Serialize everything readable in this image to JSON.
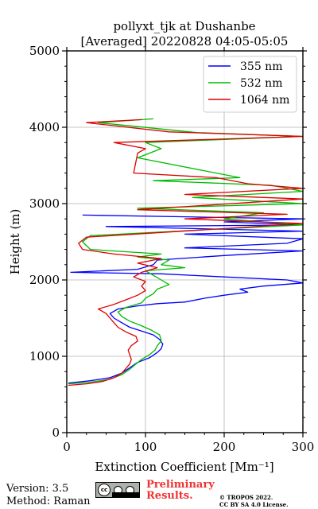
{
  "chart_data": {
    "type": "line",
    "title": "pollyxt_tjk at Dushanbe",
    "subtitle": "[Averaged] 20220828 04:05-05:05",
    "xlabel": "Extinction Coefficient [Mm⁻¹]",
    "ylabel": "Height (m)",
    "xlim": [
      0,
      300
    ],
    "ylim": [
      0,
      5000
    ],
    "x_ticks": [
      0,
      100,
      200,
      300
    ],
    "y_ticks": [
      0,
      1000,
      2000,
      3000,
      4000,
      5000
    ],
    "grid": true,
    "legend_position": "top-right",
    "series": [
      {
        "name": "355 nm",
        "color": "#0000ff",
        "points": [
          [
            2,
            650
          ],
          [
            30,
            680
          ],
          [
            55,
            720
          ],
          [
            70,
            780
          ],
          [
            80,
            850
          ],
          [
            90,
            920
          ],
          [
            105,
            980
          ],
          [
            115,
            1050
          ],
          [
            120,
            1100
          ],
          [
            122,
            1160
          ],
          [
            118,
            1220
          ],
          [
            110,
            1280
          ],
          [
            95,
            1330
          ],
          [
            80,
            1380
          ],
          [
            70,
            1440
          ],
          [
            60,
            1500
          ],
          [
            55,
            1560
          ],
          [
            65,
            1620
          ],
          [
            90,
            1660
          ],
          [
            115,
            1690
          ],
          [
            150,
            1710
          ],
          [
            175,
            1760
          ],
          [
            200,
            1800
          ],
          [
            230,
            1840
          ],
          [
            220,
            1880
          ],
          [
            250,
            1920
          ],
          [
            300,
            1960
          ],
          [
            280,
            2000
          ],
          [
            200,
            2040
          ],
          [
            120,
            2080
          ],
          [
            5,
            2100
          ],
          [
            90,
            2140
          ],
          [
            110,
            2200
          ],
          [
            115,
            2260
          ],
          [
            200,
            2320
          ],
          [
            300,
            2380
          ],
          [
            150,
            2420
          ],
          [
            280,
            2480
          ],
          [
            300,
            2540
          ],
          [
            150,
            2600
          ],
          [
            300,
            2640
          ],
          [
            50,
            2700
          ],
          [
            300,
            2720
          ],
          [
            200,
            2760
          ],
          [
            300,
            2800
          ],
          [
            20,
            2850
          ]
        ]
      },
      {
        "name": "532 nm",
        "color": "#00bb00",
        "points": [
          [
            2,
            640
          ],
          [
            30,
            660
          ],
          [
            55,
            700
          ],
          [
            70,
            760
          ],
          [
            80,
            830
          ],
          [
            88,
            900
          ],
          [
            95,
            960
          ],
          [
            105,
            1020
          ],
          [
            112,
            1080
          ],
          [
            115,
            1140
          ],
          [
            120,
            1200
          ],
          [
            118,
            1280
          ],
          [
            108,
            1340
          ],
          [
            95,
            1400
          ],
          [
            80,
            1460
          ],
          [
            70,
            1520
          ],
          [
            65,
            1580
          ],
          [
            75,
            1640
          ],
          [
            95,
            1700
          ],
          [
            100,
            1760
          ],
          [
            110,
            1820
          ],
          [
            115,
            1880
          ],
          [
            130,
            1940
          ],
          [
            120,
            2000
          ],
          [
            110,
            2060
          ],
          [
            100,
            2120
          ],
          [
            150,
            2160
          ],
          [
            120,
            2200
          ],
          [
            130,
            2260
          ],
          [
            90,
            2300
          ],
          [
            120,
            2340
          ],
          [
            30,
            2400
          ],
          [
            20,
            2500
          ],
          [
            30,
            2580
          ],
          [
            180,
            2660
          ],
          [
            300,
            2720
          ],
          [
            200,
            2800
          ],
          [
            250,
            2880
          ],
          [
            90,
            2940
          ],
          [
            300,
            3000
          ],
          [
            160,
            3080
          ],
          [
            300,
            3160
          ],
          [
            260,
            3240
          ],
          [
            110,
            3300
          ],
          [
            220,
            3340
          ],
          [
            90,
            3600
          ],
          [
            120,
            3720
          ],
          [
            100,
            3800
          ],
          [
            300,
            3880
          ],
          [
            165,
            3930
          ],
          [
            40,
            4060
          ],
          [
            110,
            4110
          ]
        ]
      },
      {
        "name": "1064 nm",
        "color": "#dd0000",
        "points": [
          [
            2,
            620
          ],
          [
            25,
            640
          ],
          [
            45,
            670
          ],
          [
            60,
            720
          ],
          [
            70,
            780
          ],
          [
            75,
            840
          ],
          [
            80,
            900
          ],
          [
            82,
            960
          ],
          [
            80,
            1020
          ],
          [
            78,
            1080
          ],
          [
            82,
            1140
          ],
          [
            90,
            1200
          ],
          [
            88,
            1260
          ],
          [
            75,
            1320
          ],
          [
            65,
            1380
          ],
          [
            60,
            1440
          ],
          [
            55,
            1500
          ],
          [
            50,
            1560
          ],
          [
            40,
            1620
          ],
          [
            60,
            1680
          ],
          [
            75,
            1740
          ],
          [
            90,
            1800
          ],
          [
            100,
            1860
          ],
          [
            95,
            1920
          ],
          [
            100,
            1980
          ],
          [
            85,
            2040
          ],
          [
            95,
            2100
          ],
          [
            115,
            2160
          ],
          [
            90,
            2220
          ],
          [
            120,
            2280
          ],
          [
            60,
            2340
          ],
          [
            20,
            2400
          ],
          [
            15,
            2480
          ],
          [
            25,
            2560
          ],
          [
            180,
            2660
          ],
          [
            300,
            2740
          ],
          [
            150,
            2800
          ],
          [
            280,
            2860
          ],
          [
            90,
            2920
          ],
          [
            300,
            3060
          ],
          [
            150,
            3120
          ],
          [
            300,
            3200
          ],
          [
            230,
            3260
          ],
          [
            190,
            3340
          ],
          [
            85,
            3400
          ],
          [
            90,
            3660
          ],
          [
            100,
            3720
          ],
          [
            60,
            3800
          ],
          [
            300,
            3880
          ],
          [
            130,
            3940
          ],
          [
            25,
            4060
          ],
          [
            95,
            4100
          ]
        ]
      }
    ]
  },
  "footer": {
    "version": "Version: 3.5",
    "method": "Method: Raman",
    "cc_text": "cc",
    "prelim_line1": "Preliminary",
    "prelim_line2": "Results.",
    "copy_line1": "© TROPOS 2022.",
    "copy_line2": "CC BY SA 4.0 License."
  }
}
